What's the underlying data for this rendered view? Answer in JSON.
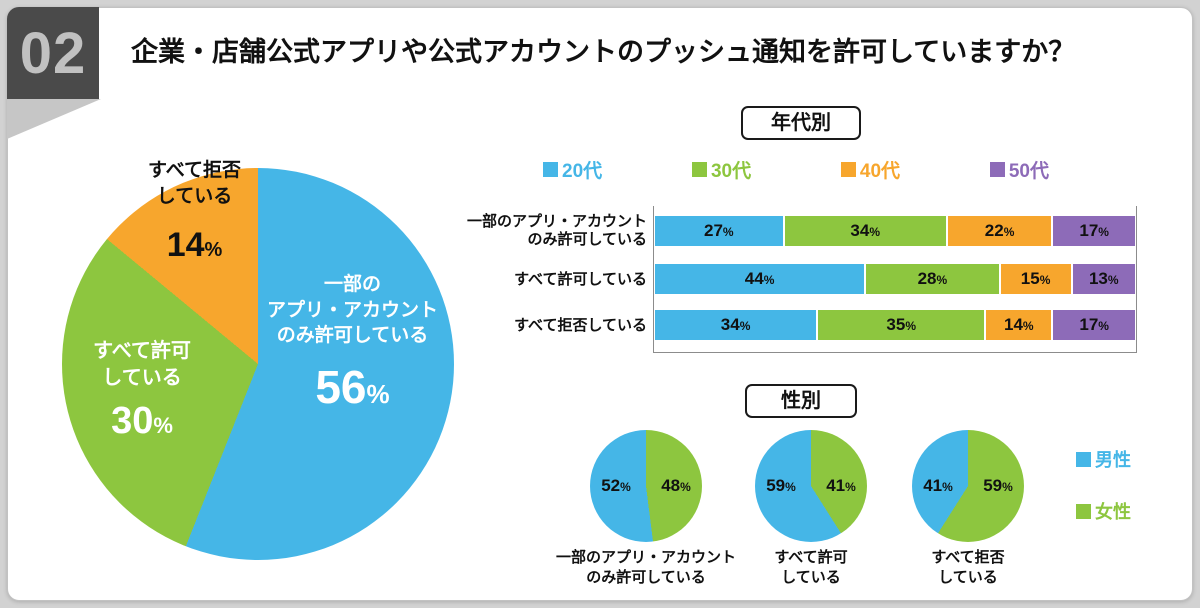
{
  "meta": {
    "pct": "%"
  },
  "header": {
    "number": "02",
    "title": "企業・店舗公式アプリや公式アカウントのプッシュ通知を許可していますか？"
  },
  "headings": {
    "age": "年代別",
    "gender": "性別"
  },
  "chart_data": [
    {
      "type": "pie",
      "title": "企業・店舗公式アプリや公式アカウントのプッシュ通知を許可していますか？",
      "categories": [
        "一部の\nアプリ・アカウント\nのみ許可している",
        "すべて許可\nしている",
        "すべて拒否\nしている"
      ],
      "values": [
        56,
        30,
        14
      ],
      "unit": "%",
      "colors": [
        "#45b6e7",
        "#8dc63f",
        "#f7a62d"
      ]
    },
    {
      "type": "bar",
      "subtype": "horizontal-stacked",
      "title": "年代別",
      "categories": [
        "一部のアプリ・アカウント\nのみ許可している",
        "すべて許可している",
        "すべて拒否している"
      ],
      "series": [
        {
          "name": "20代",
          "values": [
            27,
            44,
            34
          ]
        },
        {
          "name": "30代",
          "values": [
            34,
            28,
            35
          ]
        },
        {
          "name": "40代",
          "values": [
            22,
            15,
            14
          ]
        },
        {
          "name": "50代",
          "values": [
            17,
            13,
            17
          ]
        }
      ],
      "unit": "%",
      "xlim": [
        0,
        100
      ],
      "colors": [
        "#45b6e7",
        "#8dc63f",
        "#f7a62d",
        "#8d6bb8"
      ],
      "legend_position": "top"
    },
    {
      "type": "pie",
      "title": "性別",
      "categories": [
        "一部のアプリ・アカウント\nのみ許可している",
        "すべて許可\nしている",
        "すべて拒否\nしている"
      ],
      "series": [
        {
          "name": "男性",
          "values": [
            52,
            59,
            41
          ]
        },
        {
          "name": "女性",
          "values": [
            48,
            41,
            59
          ]
        }
      ],
      "unit": "%",
      "colors": [
        "#45b6e7",
        "#8dc63f"
      ],
      "legend_position": "right"
    }
  ]
}
